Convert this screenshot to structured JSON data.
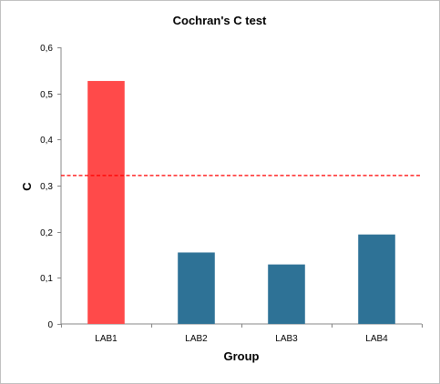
{
  "chart_data": {
    "type": "bar",
    "title": "Cochran's C test",
    "xlabel": "Group",
    "ylabel": "C",
    "categories": [
      "LAB1",
      "LAB2",
      "LAB3",
      "LAB4"
    ],
    "values": [
      0.527,
      0.155,
      0.129,
      0.194
    ],
    "bar_colors": [
      "#ff4a4a",
      "#2e7296",
      "#2e7296",
      "#2e7296"
    ],
    "ylim": [
      0,
      0.6
    ],
    "yticks": [
      "0",
      "0,1",
      "0,2",
      "0,3",
      "0,4",
      "0,5",
      "0,6"
    ],
    "ytick_values": [
      0,
      0.1,
      0.2,
      0.3,
      0.4,
      0.5,
      0.6
    ],
    "critical_value": 0.322,
    "critical_line_color": "#ff0000",
    "grid": false,
    "legend": "none"
  }
}
